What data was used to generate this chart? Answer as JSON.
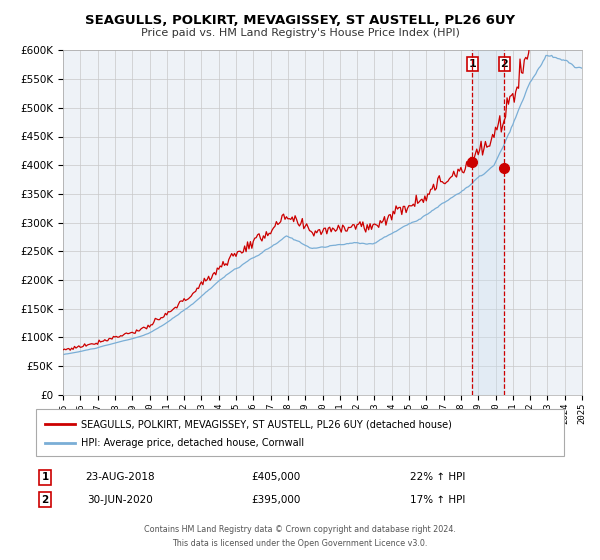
{
  "title": "SEAGULLS, POLKIRT, MEVAGISSEY, ST AUSTELL, PL26 6UY",
  "subtitle": "Price paid vs. HM Land Registry's House Price Index (HPI)",
  "legend_line1": "SEAGULLS, POLKIRT, MEVAGISSEY, ST AUSTELL, PL26 6UY (detached house)",
  "legend_line2": "HPI: Average price, detached house, Cornwall",
  "annotation1_date": "23-AUG-2018",
  "annotation1_price": "£405,000",
  "annotation1_hpi": "22% ↑ HPI",
  "annotation2_date": "30-JUN-2020",
  "annotation2_price": "£395,000",
  "annotation2_hpi": "17% ↑ HPI",
  "footer1": "Contains HM Land Registry data © Crown copyright and database right 2024.",
  "footer2": "This data is licensed under the Open Government Licence v3.0.",
  "year_start": 1995,
  "year_end": 2025,
  "ylim_min": 0,
  "ylim_max": 600000,
  "ytick_step": 50000,
  "sale1_year": 2018.65,
  "sale1_price": 405000,
  "sale2_year": 2020.5,
  "sale2_price": 395000,
  "line_color_red": "#cc0000",
  "line_color_blue": "#7aaed6",
  "dot_color": "#cc0000",
  "vline_color": "#cc0000",
  "shade_color": "#cce0f0",
  "background_color": "#eef2f7",
  "grid_color": "#c8c8c8"
}
